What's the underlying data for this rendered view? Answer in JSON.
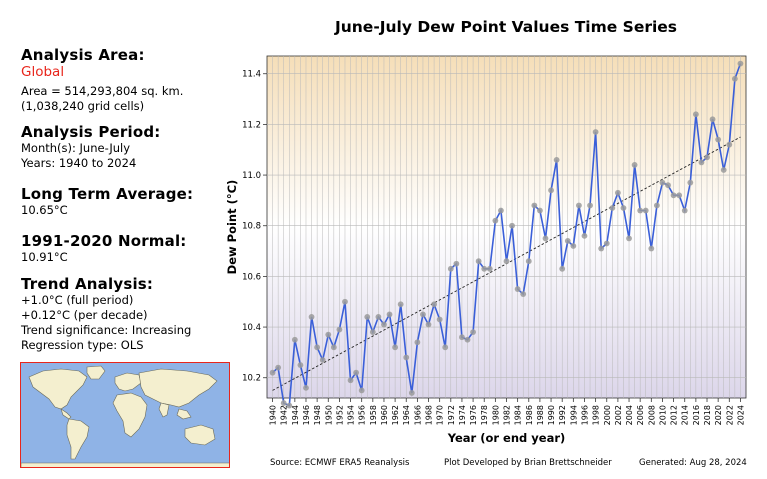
{
  "sidebar": {
    "area_heading": "Analysis Area:",
    "area_name": "Global",
    "area_size": "Area = 514,293,804 sq. km.",
    "area_cells": "(1,038,240 grid cells)",
    "period_heading": "Analysis Period:",
    "period_months": "Month(s): June-July",
    "period_years": "Years: 1940 to 2024",
    "lta_heading": "Long Term Average:",
    "lta_value": "10.65°C",
    "normal_heading": "1991-2020 Normal:",
    "normal_value": "10.91°C",
    "trend_heading": "Trend Analysis:",
    "trend_full": "+1.0°C (full period)",
    "trend_decade": "+0.12°C (per decade)",
    "trend_significance": "Trend significance: Increasing",
    "trend_regression": "Regression type: OLS"
  },
  "footer": {
    "source": "Source: ECMWF ERA5 Reanalysis",
    "developer": "Plot Developed by Brian Brettschneider",
    "generated": "Generated: Aug 28, 2024"
  },
  "colors": {
    "line": "#3a5fd9",
    "marker": "#9a9a9a",
    "trend": "#222222",
    "highlight": "#e8261c",
    "gradient_top": "#f5deb8",
    "gradient_mid": "#ffffff",
    "gradient_bottom": "#dcd6ea"
  },
  "chart_data": {
    "type": "line",
    "title": "June-July Dew Point Values Time Series",
    "xlabel": "Year (or end year)",
    "ylabel": "Dew Point (°C)",
    "xlim": [
      1939,
      2025
    ],
    "ylim": [
      10.12,
      11.47
    ],
    "yticks": [
      10.2,
      10.4,
      10.6,
      10.8,
      11.0,
      11.2,
      11.4
    ],
    "xticks": [
      1940,
      1942,
      1944,
      1946,
      1948,
      1950,
      1952,
      1954,
      1956,
      1958,
      1960,
      1962,
      1964,
      1966,
      1968,
      1970,
      1972,
      1974,
      1976,
      1978,
      1980,
      1982,
      1984,
      1986,
      1988,
      1990,
      1992,
      1994,
      1996,
      1998,
      2000,
      2002,
      2004,
      2006,
      2008,
      2010,
      2012,
      2014,
      2016,
      2018,
      2020,
      2022,
      2024
    ],
    "grid": true,
    "x": [
      1940,
      1941,
      1942,
      1943,
      1944,
      1945,
      1946,
      1947,
      1948,
      1949,
      1950,
      1951,
      1952,
      1953,
      1954,
      1955,
      1956,
      1957,
      1958,
      1959,
      1960,
      1961,
      1962,
      1963,
      1964,
      1965,
      1966,
      1967,
      1968,
      1969,
      1970,
      1971,
      1972,
      1973,
      1974,
      1975,
      1976,
      1977,
      1978,
      1979,
      1980,
      1981,
      1982,
      1983,
      1984,
      1985,
      1986,
      1987,
      1988,
      1989,
      1990,
      1991,
      1992,
      1993,
      1994,
      1995,
      1996,
      1997,
      1998,
      1999,
      2000,
      2001,
      2002,
      2003,
      2004,
      2005,
      2006,
      2007,
      2008,
      2009,
      2010,
      2011,
      2012,
      2013,
      2014,
      2015,
      2016,
      2017,
      2018,
      2019,
      2020,
      2021,
      2022,
      2023,
      2024
    ],
    "series": [
      {
        "values": [
          10.22,
          10.24,
          10.1,
          10.09,
          10.35,
          10.25,
          10.16,
          10.44,
          10.32,
          10.27,
          10.37,
          10.32,
          10.39,
          10.5,
          10.19,
          10.22,
          10.15,
          10.44,
          10.38,
          10.44,
          10.41,
          10.45,
          10.32,
          10.49,
          10.28,
          10.14,
          10.34,
          10.45,
          10.41,
          10.49,
          10.43,
          10.32,
          10.63,
          10.65,
          10.36,
          10.35,
          10.38,
          10.66,
          10.63,
          10.63,
          10.82,
          10.86,
          10.66,
          10.8,
          10.55,
          10.53,
          10.66,
          10.88,
          10.86,
          10.75,
          10.94,
          11.06,
          10.63,
          10.74,
          10.72,
          10.88,
          10.76,
          10.88,
          11.17,
          10.71,
          10.73,
          10.87,
          10.93,
          10.87,
          10.75,
          11.04,
          10.86,
          10.86,
          10.71,
          10.88,
          10.97,
          10.96,
          10.92,
          10.92,
          10.86,
          10.97,
          11.24,
          11.05,
          11.07,
          11.22,
          11.14,
          11.02,
          11.12,
          11.38,
          11.44
        ]
      }
    ],
    "trend_line": {
      "x": [
        1940,
        2024
      ],
      "y": [
        10.15,
        11.15
      ]
    }
  }
}
